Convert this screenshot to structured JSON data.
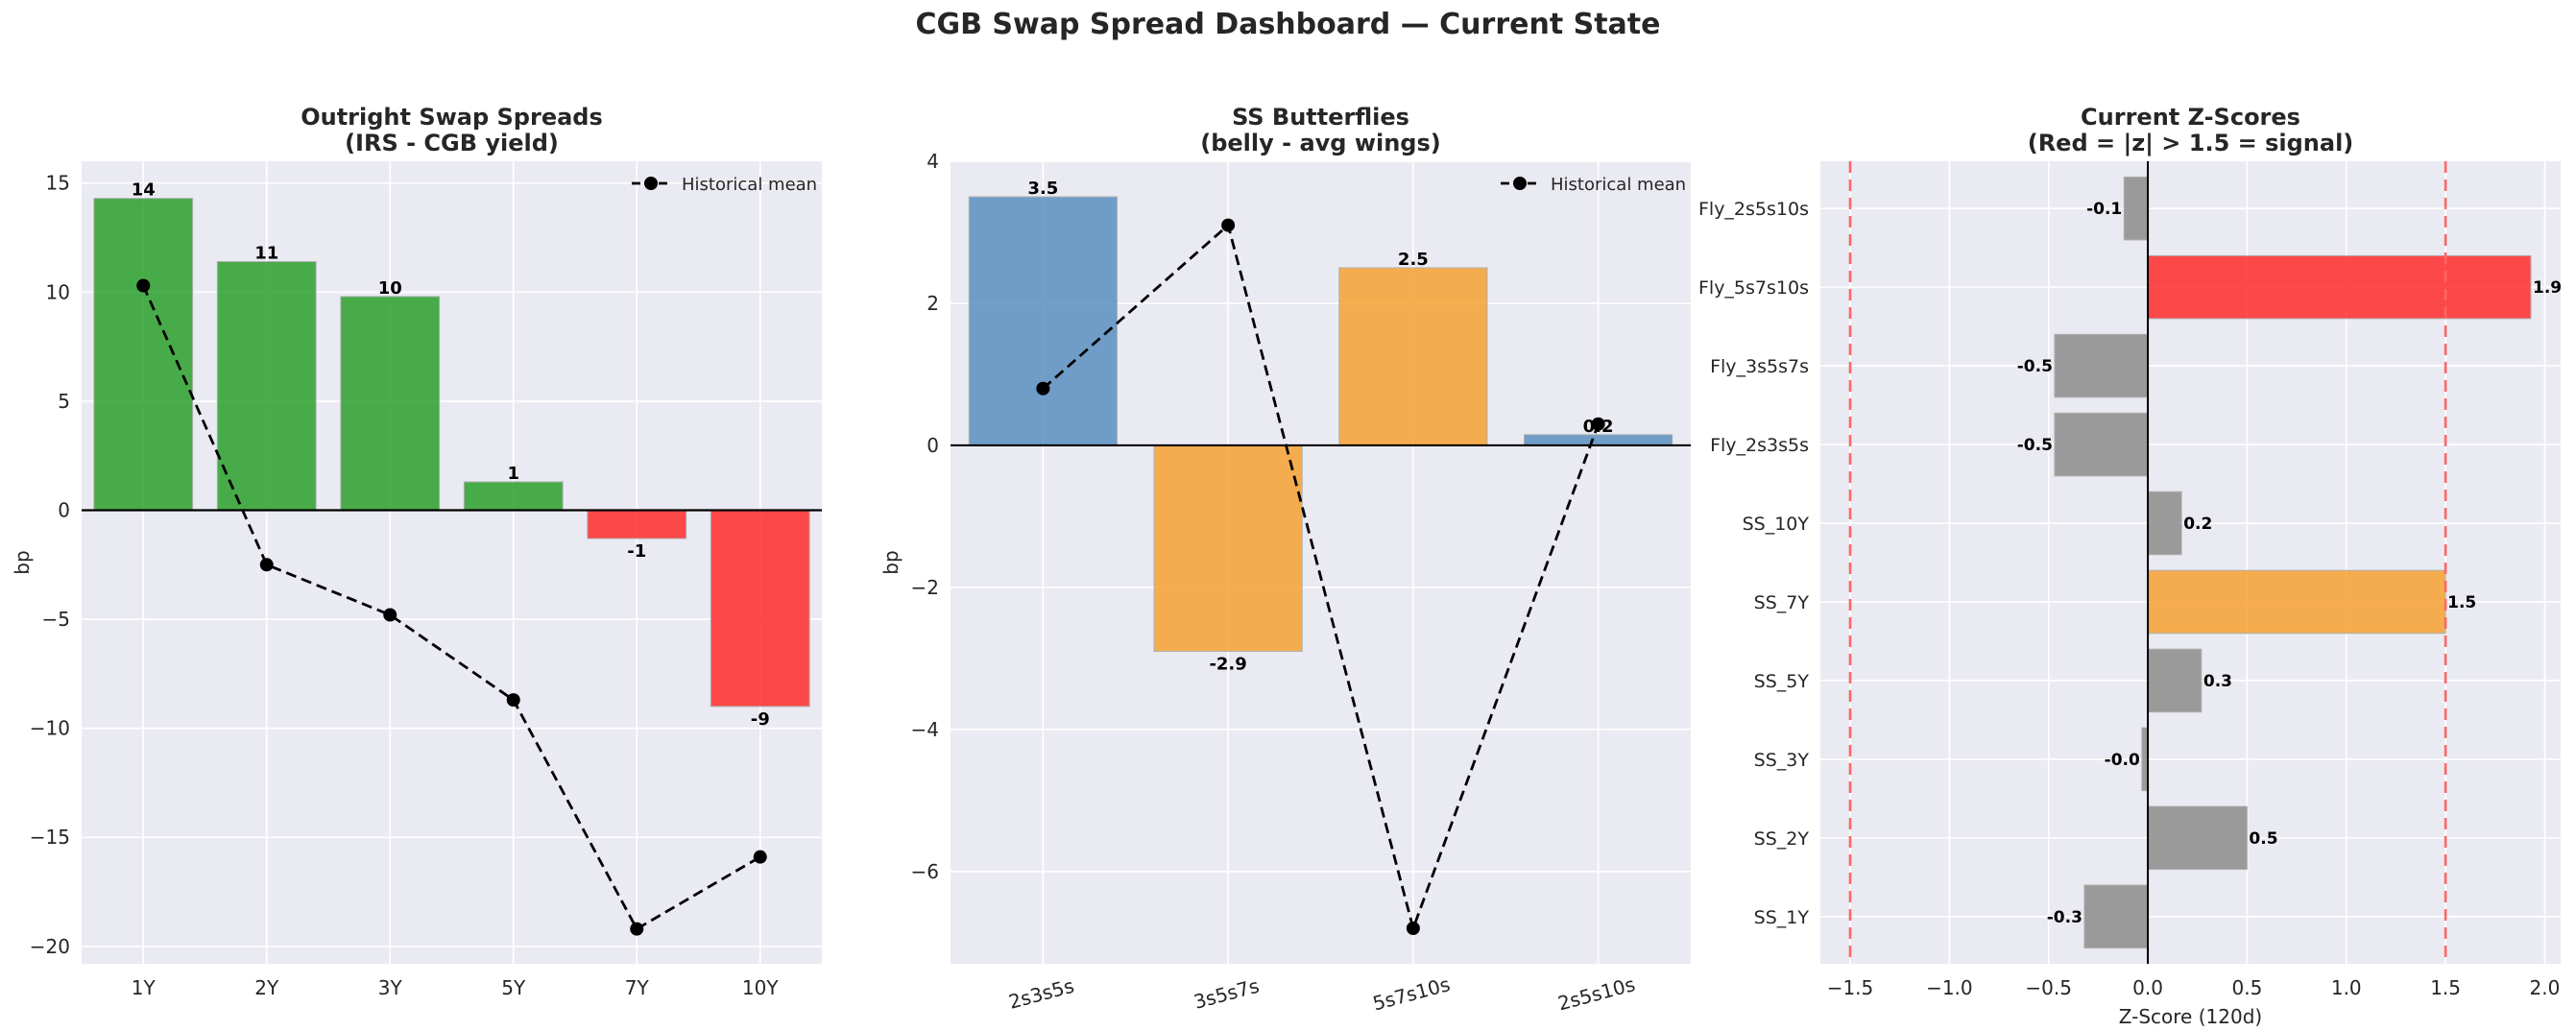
{
  "suptitle": "CGB Swap Spread Dashboard — Current State",
  "colors": {
    "background": "#eaeaf2",
    "grid": "#ffffff",
    "green": "#2ca02c",
    "red": "#ff2b2b",
    "steelblue": "#5b8fbf",
    "orange": "#f7a133",
    "gray": "#8c8c8c",
    "line": "#000000",
    "text": "#262626",
    "threshold": "#ff6666"
  },
  "chart_data": [
    {
      "type": "bar",
      "title_line1": "Outright Swap Spreads",
      "title_line2": "(IRS - CGB yield)",
      "xlabel": "",
      "ylabel": "bp",
      "categories": [
        "1Y",
        "2Y",
        "3Y",
        "5Y",
        "7Y",
        "10Y"
      ],
      "values": [
        14.3,
        11.4,
        9.8,
        1.3,
        -1.3,
        -9.0
      ],
      "bar_labels": [
        "14",
        "11",
        "10",
        "1",
        "-1",
        "-9"
      ],
      "bar_colors": [
        "green",
        "green",
        "green",
        "green",
        "red",
        "red"
      ],
      "mean_series": {
        "name": "Historical mean",
        "values": [
          10.3,
          -2.5,
          -4.8,
          -8.7,
          -19.2,
          -15.9
        ]
      },
      "ylim": [
        -20.8,
        16
      ],
      "yticks": [
        15,
        10,
        5,
        0,
        -5,
        -10,
        -15,
        -20
      ],
      "ytick_labels": [
        "15",
        "10",
        "5",
        "0",
        "−5",
        "−10",
        "−15",
        "−20"
      ],
      "legend": "top-right",
      "grid": true
    },
    {
      "type": "bar",
      "title_line1": "SS Butterflies",
      "title_line2": "(belly - avg wings)",
      "xlabel": "",
      "ylabel": "bp",
      "categories": [
        "2s3s5s",
        "3s5s7s",
        "5s7s10s",
        "2s5s10s"
      ],
      "values": [
        3.5,
        -2.9,
        2.5,
        0.15
      ],
      "bar_labels": [
        "3.5",
        "-2.9",
        "2.5",
        "0.2"
      ],
      "bar_colors": [
        "steelblue",
        "orange",
        "orange",
        "steelblue"
      ],
      "mean_series": {
        "name": "Historical mean",
        "values": [
          0.8,
          3.1,
          -6.8,
          0.3
        ]
      },
      "ylim": [
        -7.3,
        4
      ],
      "yticks": [
        4,
        2,
        0,
        -2,
        -4,
        -6
      ],
      "ytick_labels": [
        "4",
        "2",
        "0",
        "−2",
        "−4",
        "−6"
      ],
      "legend": "top-right",
      "grid": true
    },
    {
      "type": "barh",
      "title_line1": "Current Z-Scores",
      "title_line2": "(Red = |z| > 1.5 = signal)",
      "xlabel": "Z-Score (120d)",
      "ylabel": "",
      "categories": [
        "SS_1Y",
        "SS_2Y",
        "SS_3Y",
        "SS_5Y",
        "SS_7Y",
        "SS_10Y",
        "Fly_2s3s5s",
        "Fly_3s5s7s",
        "Fly_5s7s10s",
        "Fly_2s5s10s"
      ],
      "values": [
        -0.32,
        0.5,
        -0.03,
        0.27,
        1.5,
        0.17,
        -0.47,
        -0.47,
        1.93,
        -0.12
      ],
      "bar_labels": [
        "-0.3",
        "0.5",
        "-0.0",
        "0.3",
        "1.5",
        "0.2",
        "-0.5",
        "-0.5",
        "1.9",
        "-0.1"
      ],
      "bar_colors": [
        "gray",
        "gray",
        "gray",
        "gray",
        "orange",
        "gray",
        "gray",
        "gray",
        "red",
        "gray"
      ],
      "thresholds": [
        -1.5,
        1.5
      ],
      "xlim": [
        -1.65,
        2.08
      ],
      "xticks": [
        -1.5,
        -1.0,
        -0.5,
        0.0,
        0.5,
        1.0,
        1.5,
        2.0
      ],
      "xtick_labels": [
        "−1.5",
        "−1.0",
        "−0.5",
        "0.0",
        "0.5",
        "1.0",
        "1.5",
        "2.0"
      ],
      "grid": true
    }
  ]
}
